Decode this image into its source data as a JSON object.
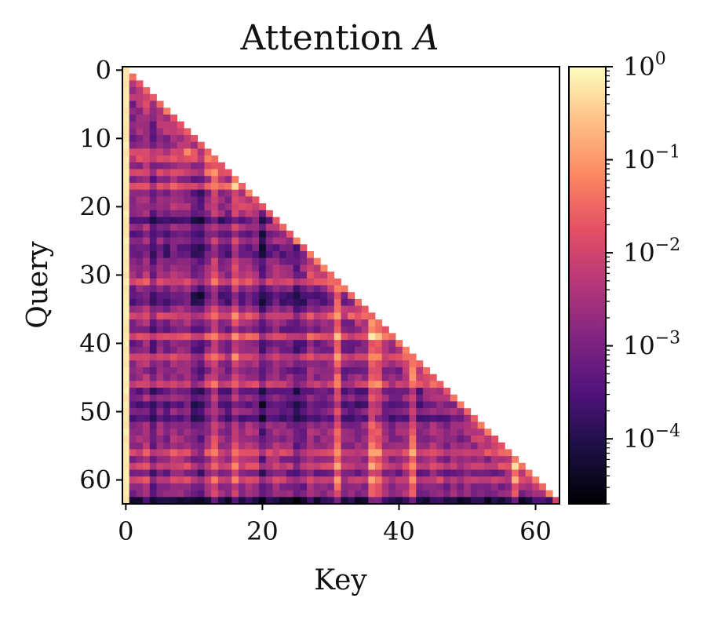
{
  "chart_data": {
    "type": "heatmap",
    "title": "Attention",
    "title_symbol": "A",
    "xlabel": "Key",
    "ylabel": "Query",
    "size": 64,
    "mask": "lower-triangular (causal)",
    "x_ticks": [
      "0",
      "20",
      "40",
      "60"
    ],
    "y_ticks": [
      "0",
      "10",
      "20",
      "30",
      "40",
      "50",
      "60"
    ],
    "colorbar": {
      "scale": "log",
      "range": [
        2e-05,
        1
      ],
      "colormap": "magma",
      "ticks": [
        {
          "base": "10",
          "exp": "0",
          "value": 1
        },
        {
          "base": "10",
          "exp": "−1",
          "value": 0.1
        },
        {
          "base": "10",
          "exp": "−2",
          "value": 0.01
        },
        {
          "base": "10",
          "exp": "−3",
          "value": 0.001
        },
        {
          "base": "10",
          "exp": "−4",
          "value": 0.0001
        }
      ]
    },
    "column_profile": {
      "sink_key": 0,
      "sink_value": 0.75,
      "bright_keys": [
        31,
        16,
        13,
        36,
        37,
        42,
        57
      ],
      "dark_keys": [
        4,
        10,
        11,
        20,
        25,
        26
      ]
    },
    "row_profile": {
      "bright_queries": [
        12,
        13,
        15,
        17,
        31,
        36,
        39,
        42,
        46,
        56,
        58,
        60
      ],
      "dark_queries": [
        22,
        24,
        26,
        27,
        33,
        34,
        47,
        49,
        51,
        63
      ]
    }
  }
}
